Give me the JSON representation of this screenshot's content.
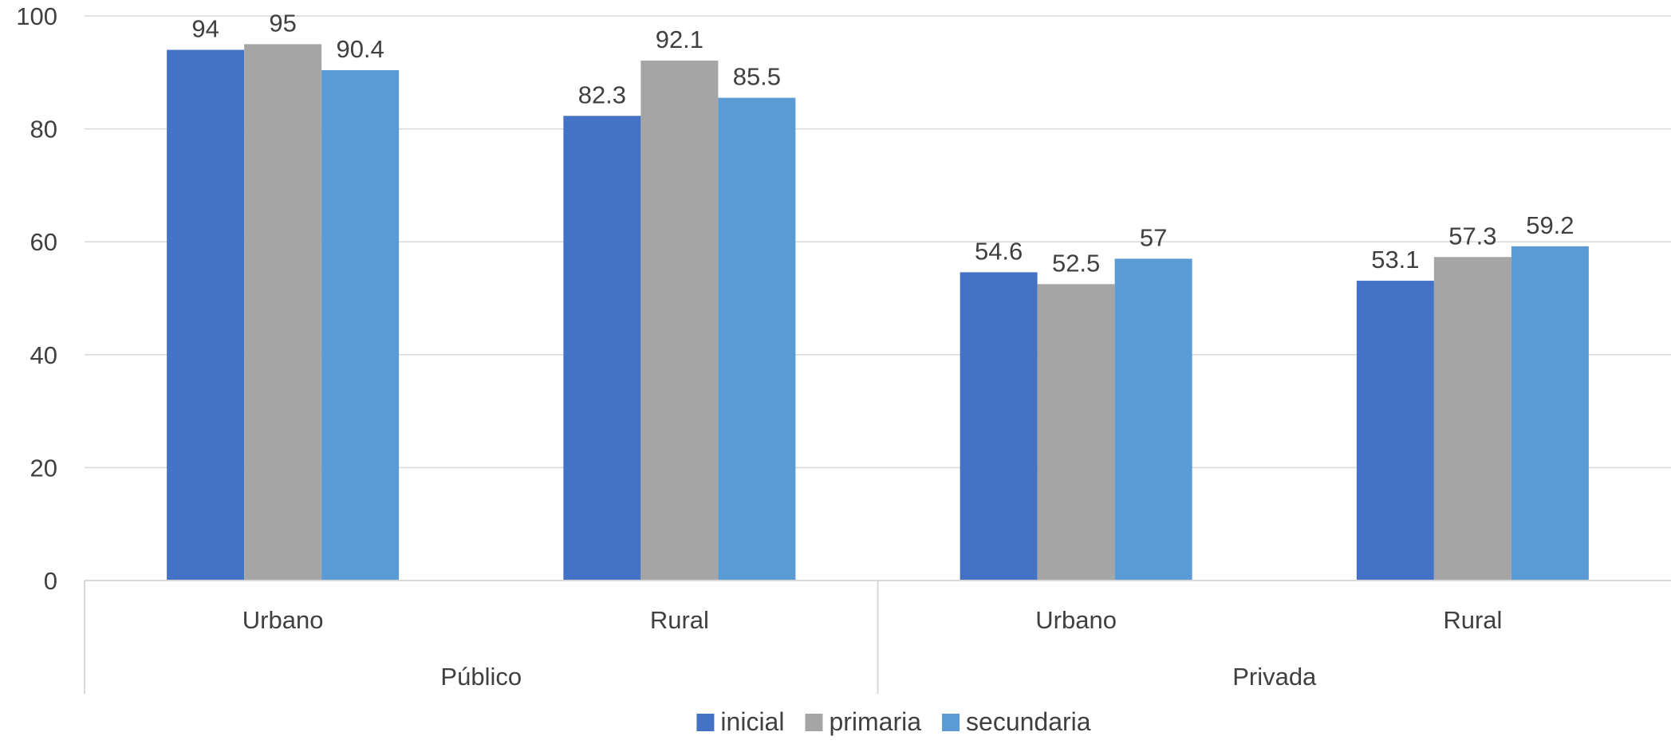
{
  "chart_data": {
    "type": "bar",
    "title": "",
    "xlabel": "",
    "ylabel": "",
    "ylim": [
      0,
      100
    ],
    "yticks": [
      "0",
      "20",
      "40",
      "60",
      "80",
      "100"
    ],
    "grid": true,
    "legend_position": "bottom",
    "groups": [
      {
        "label": "Público",
        "categories": [
          "Urbano",
          "Rural"
        ]
      },
      {
        "label": "Privada",
        "categories": [
          "Urbano",
          "Rural"
        ]
      }
    ],
    "categories": [
      "Urbano",
      "Rural",
      "Urbano",
      "Rural"
    ],
    "series": [
      {
        "name": "inicial",
        "color": "#4472C4",
        "values": [
          94,
          82.3,
          54.6,
          53.1
        ]
      },
      {
        "name": "primaria",
        "color": "#A5A5A5",
        "values": [
          95,
          92.1,
          52.5,
          57.3
        ]
      },
      {
        "name": "secundaria",
        "color": "#5B9BD5",
        "values": [
          90.4,
          85.5,
          57,
          59.2
        ]
      }
    ]
  }
}
